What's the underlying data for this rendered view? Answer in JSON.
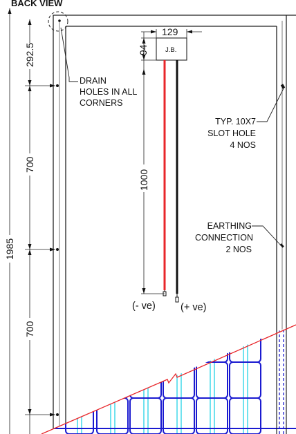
{
  "view_title": "BACK VIEW",
  "junction_box": {
    "label": "J.B.",
    "width_dim": "129",
    "height_dim": "94"
  },
  "dimensions": {
    "overall_height": "1985",
    "top_to_first_hole": "292.5",
    "hole_spacing_upper": "700",
    "hole_spacing_lower": "700",
    "cable_length": "1000"
  },
  "notes": {
    "drain_holes": [
      "DRAIN",
      "HOLES IN ALL",
      "CORNERS"
    ],
    "slot_hole": [
      "TYP. 10X7",
      "SLOT HOLE",
      "4 NOS"
    ],
    "earthing": [
      "EARTHING",
      "CONNECTION",
      "2 NOS"
    ]
  },
  "cables": {
    "negative_label": "(- ve)",
    "positive_label": "(+ ve)",
    "negative_color": "#e8262a",
    "positive_color": "#111111"
  },
  "colors": {
    "frame": "#222222",
    "cell_grid": "#1a1ad0",
    "cell_inner": "#33d6e8",
    "cutaway_line": "#e8262a"
  }
}
